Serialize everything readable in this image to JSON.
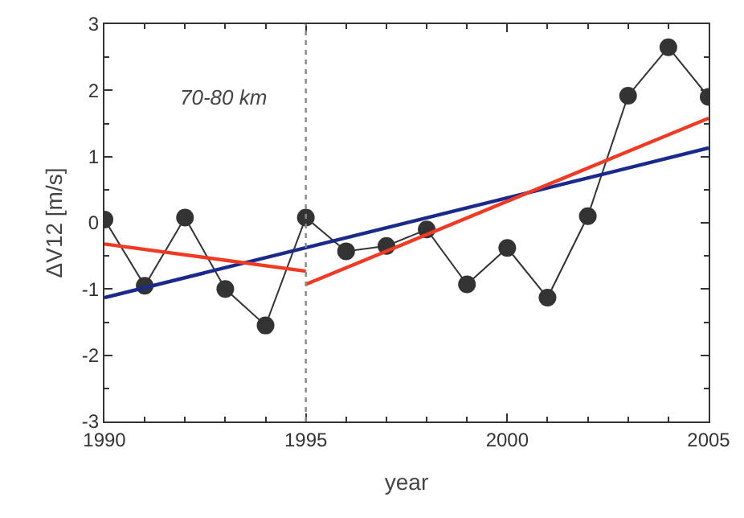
{
  "chart_data": {
    "type": "line",
    "xlabel": "year",
    "ylabel": "ΔV12 [m/s]",
    "annotations": [
      "70-80 km"
    ],
    "xlim": [
      1990,
      2005
    ],
    "xticks": [
      1990,
      1995,
      2000,
      2005
    ],
    "ylim": [
      -3,
      3
    ],
    "yticks": [
      -3,
      -2,
      -1,
      0,
      1,
      2,
      3
    ],
    "marker": "circle",
    "ref_lines": [
      {
        "axis": "x",
        "value": 1995,
        "color": "#888888",
        "line_style": "dotted"
      }
    ],
    "series": [
      {
        "color": "#333333",
        "x": [
          1990,
          1991,
          1992,
          1993,
          1994,
          1995,
          1996,
          1997,
          1998,
          1999,
          2000,
          2001,
          2002,
          2003,
          2004,
          2005
        ],
        "values": [
          0.05,
          -0.95,
          0.08,
          -1.0,
          -1.55,
          0.08,
          -0.43,
          -0.35,
          -0.1,
          -0.93,
          -0.38,
          -1.13,
          0.1,
          1.92,
          2.65,
          1.9
        ]
      },
      {
        "color": "#1a2a8c",
        "marker": "none",
        "x": [
          1990,
          2005
        ],
        "values": [
          -1.13,
          1.13
        ]
      },
      {
        "color": "#f03a24",
        "marker": "none",
        "x": [
          1990,
          1995
        ],
        "values": [
          -0.32,
          -0.73
        ]
      },
      {
        "color": "#f03a24",
        "marker": "none",
        "x": [
          1995,
          2005
        ],
        "values": [
          -0.93,
          1.58
        ]
      }
    ]
  }
}
